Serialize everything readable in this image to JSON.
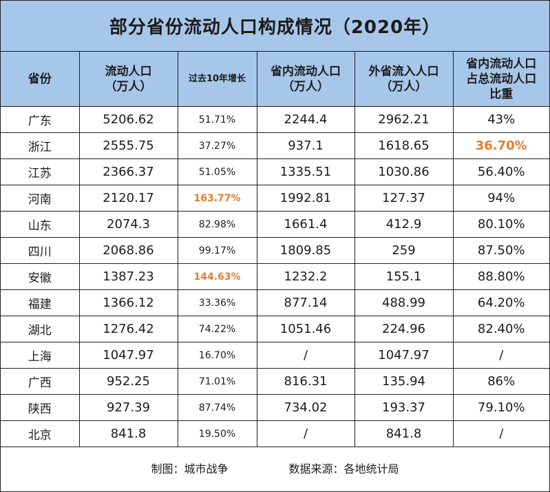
{
  "title": "部分省份流动人口构成情况（2020年）",
  "headers": {
    "province": "省份",
    "floating_1": "流动人口",
    "floating_2": "（万人）",
    "growth": "过去10年增长",
    "intra_1": "省内流动人口",
    "intra_2": "（万人）",
    "inter_1": "外省流入人口",
    "inter_2": "（万人）",
    "ratio_1": "省内流动人口",
    "ratio_2": "占总流动人口",
    "ratio_3": "比重"
  },
  "colors": {
    "header_bg": "#a7c7ea",
    "highlight": "#e97a2b",
    "border": "#1f1f1f"
  },
  "chart_data": {
    "type": "table",
    "title": "部分省份流动人口构成情况（2020年）",
    "columns": [
      "省份",
      "流动人口（万人）",
      "过去10年增长",
      "省内流动人口（万人）",
      "外省流入人口（万人）",
      "省内流动人口占总流动人口比重"
    ],
    "rows": [
      {
        "province": "广东",
        "floating": "5206.62",
        "growth": "51.71%",
        "intra": "2244.4",
        "inter": "2962.21",
        "ratio": "43%"
      },
      {
        "province": "浙江",
        "floating": "2555.75",
        "growth": "37.27%",
        "intra": "937.1",
        "inter": "1618.65",
        "ratio": "36.70%",
        "ratio_highlight": true
      },
      {
        "province": "江苏",
        "floating": "2366.37",
        "growth": "51.05%",
        "intra": "1335.51",
        "inter": "1030.86",
        "ratio": "56.40%"
      },
      {
        "province": "河南",
        "floating": "2120.17",
        "growth": "163.77%",
        "growth_highlight": true,
        "intra": "1992.81",
        "inter": "127.37",
        "ratio": "94%"
      },
      {
        "province": "山东",
        "floating": "2074.3",
        "growth": "82.98%",
        "intra": "1661.4",
        "inter": "412.9",
        "ratio": "80.10%"
      },
      {
        "province": "四川",
        "floating": "2068.86",
        "growth": "99.17%",
        "intra": "1809.85",
        "inter": "259",
        "ratio": "87.50%"
      },
      {
        "province": "安徽",
        "floating": "1387.23",
        "growth": "144.63%",
        "growth_highlight": true,
        "intra": "1232.2",
        "inter": "155.1",
        "ratio": "88.80%"
      },
      {
        "province": "福建",
        "floating": "1366.12",
        "growth": "33.36%",
        "intra": "877.14",
        "inter": "488.99",
        "ratio": "64.20%"
      },
      {
        "province": "湖北",
        "floating": "1276.42",
        "growth": "74.22%",
        "intra": "1051.46",
        "inter": "224.96",
        "ratio": "82.40%"
      },
      {
        "province": "上海",
        "floating": "1047.97",
        "growth": "16.70%",
        "intra": "/",
        "inter": "1047.97",
        "ratio": "/"
      },
      {
        "province": "广西",
        "floating": "952.25",
        "growth": "71.01%",
        "intra": "816.31",
        "inter": "135.94",
        "ratio": "86%"
      },
      {
        "province": "陕西",
        "floating": "927.39",
        "growth": "87.74%",
        "intra": "734.02",
        "inter": "193.37",
        "ratio": "79.10%"
      },
      {
        "province": "北京",
        "floating": "841.8",
        "growth": "19.50%",
        "intra": "/",
        "inter": "841.8",
        "ratio": "/"
      }
    ]
  },
  "footer": {
    "credit": "制图：城市战争",
    "source": "数据来源：各地统计局"
  }
}
